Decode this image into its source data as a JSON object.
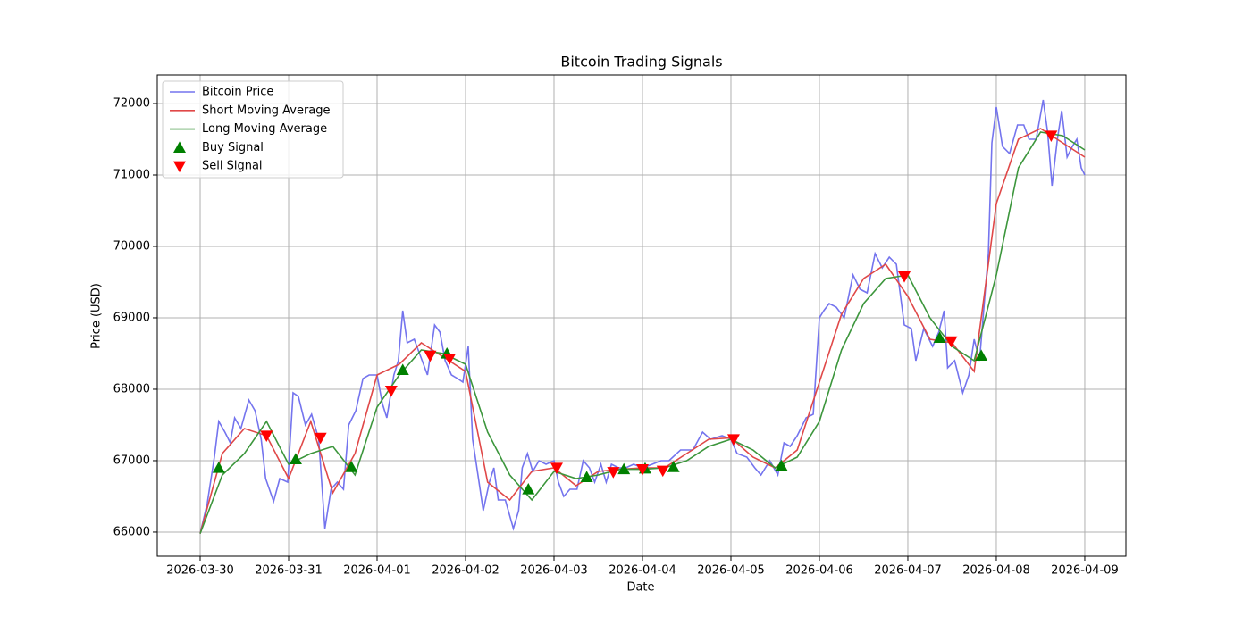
{
  "chart_data": {
    "type": "line",
    "title": "Bitcoin Trading Signals",
    "x_label": "Date",
    "y_label": "Price (USD)",
    "xlim": [
      -0.485,
      10.465
    ],
    "ylim": [
      65662,
      72400
    ],
    "xticks": [
      {
        "value": 0,
        "label": "2026-03-30"
      },
      {
        "value": 1,
        "label": "2026-03-31"
      },
      {
        "value": 2,
        "label": "2026-04-01"
      },
      {
        "value": 3,
        "label": "2026-04-02"
      },
      {
        "value": 4,
        "label": "2026-04-03"
      },
      {
        "value": 5,
        "label": "2026-04-04"
      },
      {
        "value": 6,
        "label": "2026-04-05"
      },
      {
        "value": 7,
        "label": "2026-04-06"
      },
      {
        "value": 8,
        "label": "2026-04-07"
      },
      {
        "value": 9,
        "label": "2026-04-08"
      },
      {
        "value": 10,
        "label": "2026-04-09"
      }
    ],
    "yticks": [
      66000,
      67000,
      68000,
      69000,
      70000,
      71000,
      72000
    ],
    "grid": true,
    "legend": "upper left",
    "series": [
      {
        "name": "Bitcoin Price",
        "type": "line",
        "color": "#7474ee",
        "x": [
          0,
          0.08,
          0.16,
          0.21,
          0.28,
          0.34,
          0.39,
          0.46,
          0.55,
          0.62,
          0.69,
          0.74,
          0.83,
          0.9,
          0.99,
          1.05,
          1.11,
          1.19,
          1.26,
          1.34,
          1.41,
          1.48,
          1.55,
          1.62,
          1.68,
          1.76,
          1.84,
          1.91,
          2.0,
          2.06,
          2.11,
          2.19,
          2.24,
          2.29,
          2.34,
          2.42,
          2.48,
          2.57,
          2.65,
          2.71,
          2.77,
          2.84,
          2.91,
          2.97,
          3.03,
          3.08,
          3.14,
          3.2,
          3.27,
          3.32,
          3.37,
          3.45,
          3.54,
          3.6,
          3.64,
          3.7,
          3.76,
          3.83,
          3.91,
          4.0,
          4.05,
          4.11,
          4.18,
          4.26,
          4.33,
          4.4,
          4.46,
          4.53,
          4.59,
          4.65,
          4.73,
          4.81,
          4.9,
          5.0,
          5.11,
          5.21,
          5.3,
          5.43,
          5.57,
          5.68,
          5.77,
          5.9,
          6.0,
          6.07,
          6.18,
          6.27,
          6.34,
          6.44,
          6.53,
          6.6,
          6.67,
          6.75,
          6.85,
          6.93,
          7.0,
          7.05,
          7.11,
          7.19,
          7.28,
          7.38,
          7.46,
          7.54,
          7.63,
          7.71,
          7.79,
          7.87,
          7.96,
          8.04,
          8.09,
          8.18,
          8.28,
          8.35,
          8.41,
          8.45,
          8.53,
          8.62,
          8.69,
          8.75,
          8.81,
          8.87,
          8.91,
          8.95,
          9.0,
          9.07,
          9.15,
          9.24,
          9.31,
          9.37,
          9.45,
          9.53,
          9.58,
          9.63,
          9.69,
          9.74,
          9.8,
          9.86,
          9.91,
          9.96,
          10.0
        ],
        "values": [
          65980,
          66400,
          67050,
          67550,
          67400,
          67250,
          67600,
          67450,
          67850,
          67700,
          67300,
          66750,
          66430,
          66750,
          66700,
          67950,
          67900,
          67500,
          67650,
          67300,
          66050,
          66600,
          66700,
          66600,
          67500,
          67700,
          68150,
          68200,
          68200,
          67800,
          67600,
          68200,
          68400,
          69100,
          68650,
          68700,
          68500,
          68200,
          68900,
          68800,
          68400,
          68200,
          68150,
          68100,
          68600,
          67300,
          66800,
          66300,
          66700,
          66900,
          66450,
          66450,
          66050,
          66300,
          66900,
          67100,
          66850,
          67000,
          66950,
          67000,
          66700,
          66500,
          66600,
          66600,
          67000,
          66900,
          66700,
          66950,
          66700,
          66950,
          66900,
          66900,
          66950,
          66900,
          66950,
          67000,
          67000,
          67150,
          67150,
          67400,
          67300,
          67350,
          67300,
          67100,
          67050,
          66900,
          66800,
          67000,
          66800,
          67250,
          67200,
          67350,
          67600,
          67650,
          69000,
          69100,
          69200,
          69150,
          69000,
          69600,
          69400,
          69350,
          69900,
          69700,
          69850,
          69750,
          68900,
          68850,
          68400,
          68850,
          68600,
          68800,
          69100,
          68300,
          68400,
          67950,
          68200,
          68700,
          68400,
          69300,
          69900,
          71450,
          71950,
          71400,
          71300,
          71700,
          71700,
          71500,
          71500,
          72050,
          71600,
          70850,
          71500,
          71900,
          71250,
          71400,
          71500,
          71100,
          71000
        ]
      },
      {
        "name": "Short Moving Average",
        "type": "line",
        "color": "#e04848",
        "x": [
          0,
          0.25,
          0.5,
          0.75,
          1,
          1.25,
          1.5,
          1.75,
          2,
          2.25,
          2.5,
          2.75,
          3,
          3.25,
          3.5,
          3.75,
          4,
          4.25,
          4.5,
          4.75,
          5,
          5.25,
          5.5,
          5.75,
          6,
          6.25,
          6.5,
          6.75,
          7,
          7.25,
          7.5,
          7.75,
          8,
          8.25,
          8.5,
          8.75,
          9,
          9.25,
          9.5,
          9.75,
          10
        ],
        "values": [
          65980,
          67100,
          67450,
          67350,
          66750,
          67550,
          66550,
          67100,
          68200,
          68350,
          68650,
          68450,
          68250,
          66700,
          66450,
          66850,
          66900,
          66650,
          66850,
          66880,
          66900,
          66900,
          67100,
          67300,
          67320,
          67050,
          66900,
          67150,
          68100,
          69050,
          69550,
          69750,
          69300,
          68700,
          68650,
          68250,
          70600,
          71500,
          71650,
          71450,
          71250
        ]
      },
      {
        "name": "Long Moving Average",
        "type": "line",
        "color": "#3c963c",
        "x": [
          0,
          0.25,
          0.5,
          0.75,
          1,
          1.25,
          1.5,
          1.75,
          2,
          2.25,
          2.5,
          2.75,
          3,
          3.25,
          3.5,
          3.75,
          4,
          4.25,
          4.5,
          4.75,
          5,
          5.25,
          5.5,
          5.75,
          6,
          6.25,
          6.5,
          6.75,
          7,
          7.25,
          7.5,
          7.75,
          8,
          8.25,
          8.5,
          8.75,
          9,
          9.25,
          9.5,
          9.75,
          10
        ],
        "values": [
          65980,
          66800,
          67100,
          67550,
          66950,
          67100,
          67200,
          66800,
          67750,
          68200,
          68550,
          68500,
          68350,
          67400,
          66800,
          66450,
          66850,
          66750,
          66800,
          66880,
          66880,
          66900,
          67000,
          67200,
          67300,
          67150,
          66900,
          67050,
          67550,
          68550,
          69200,
          69550,
          69600,
          69000,
          68600,
          68400,
          69600,
          71100,
          71600,
          71550,
          71350
        ]
      },
      {
        "name": "Buy Signal",
        "type": "scatter",
        "marker": "triangle-up",
        "color": "green",
        "x": [
          0.21,
          1.08,
          1.71,
          2.29,
          2.79,
          3.71,
          4.37,
          4.79,
          5.03,
          5.35,
          6.57,
          8.36,
          8.83
        ],
        "values": [
          66900,
          67020,
          66910,
          68270,
          68500,
          66600,
          66770,
          66880,
          66890,
          66910,
          66930,
          68720,
          68470
        ]
      },
      {
        "name": "Sell Signal",
        "type": "scatter",
        "marker": "triangle-down",
        "color": "red",
        "x": [
          0.75,
          1.36,
          2.16,
          2.6,
          2.82,
          4.03,
          4.67,
          5.0,
          5.23,
          6.03,
          7.96,
          8.49,
          9.62
        ],
        "values": [
          67350,
          67320,
          67980,
          68470,
          68430,
          66900,
          66840,
          66880,
          66860,
          67300,
          69580,
          68670,
          71550
        ]
      }
    ]
  }
}
